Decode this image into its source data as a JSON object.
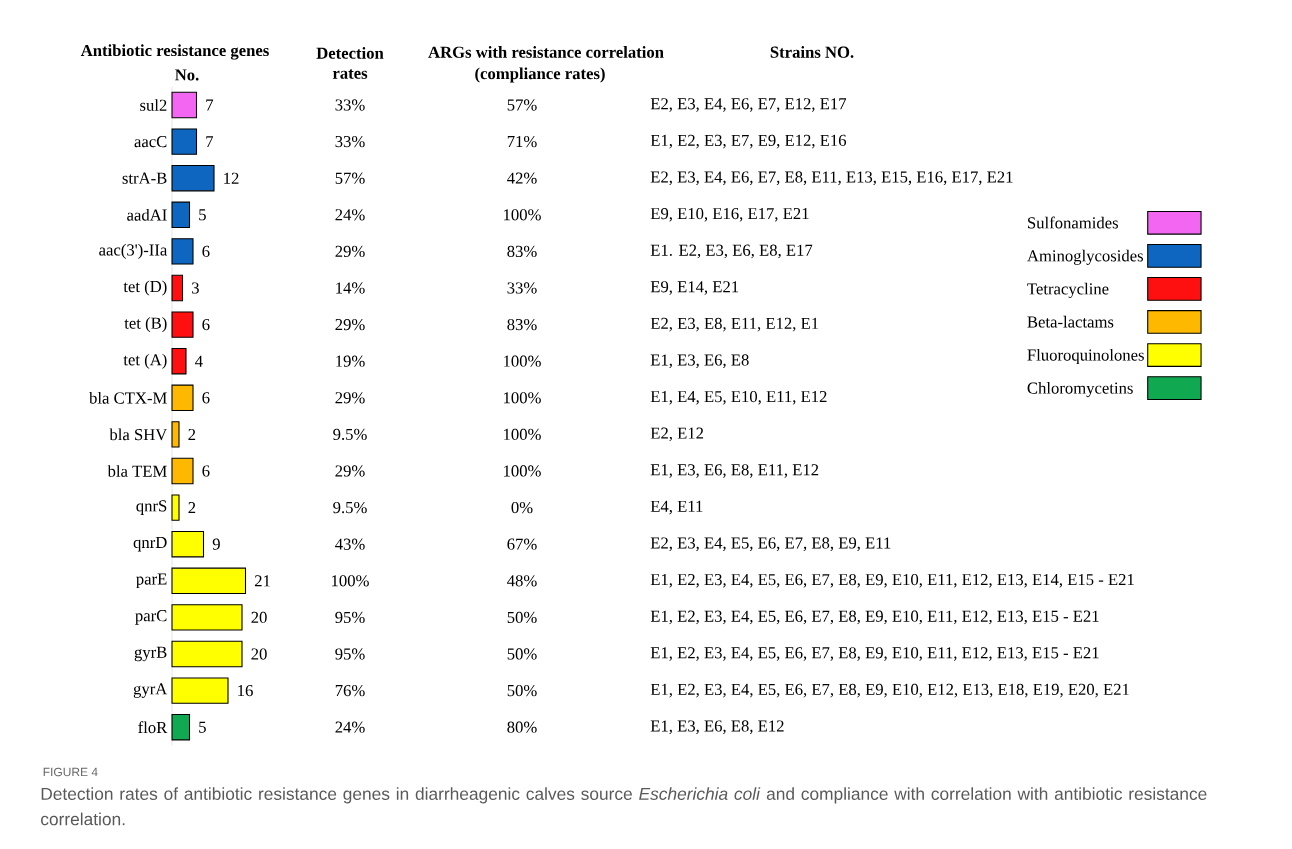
{
  "chart_data": [
    {
      "type": "bar",
      "orientation": "horizontal",
      "title": "Antibiotic resistance genes",
      "subtitle": "No.",
      "categories": [
        "sul2",
        "aacC",
        "strA-B",
        "aadAI",
        "aac(3')-IIa",
        "tet (D)",
        "tet (B)",
        "tet (A)",
        "bla CTX-M",
        "bla SHV",
        "bla TEM",
        "qnrS",
        "qnrD",
        "parE",
        "parC",
        "gyrB",
        "gyrA",
        "floR"
      ],
      "series": [
        {
          "name": "Sulfonamides",
          "color": "#f266f2",
          "values": [
            7,
            null,
            null,
            null,
            null,
            null,
            null,
            null,
            null,
            null,
            null,
            null,
            null,
            null,
            null,
            null,
            null,
            null
          ]
        },
        {
          "name": "Aminoglycosides",
          "color": "#0f66c0",
          "values": [
            null,
            7,
            12,
            5,
            6,
            null,
            null,
            null,
            null,
            null,
            null,
            null,
            null,
            null,
            null,
            null,
            null,
            null
          ]
        },
        {
          "name": "Tetracycline",
          "color": "#ff1010",
          "values": [
            null,
            null,
            null,
            null,
            null,
            3,
            6,
            4,
            null,
            null,
            null,
            null,
            null,
            null,
            null,
            null,
            null,
            null
          ]
        },
        {
          "name": "Beta-lactams",
          "color": "#ffb800",
          "values": [
            null,
            null,
            null,
            null,
            null,
            null,
            null,
            null,
            6,
            2,
            6,
            null,
            null,
            null,
            null,
            null,
            null,
            null
          ]
        },
        {
          "name": "Fluoroquinolones",
          "color": "#ffff00",
          "values": [
            null,
            null,
            null,
            null,
            null,
            null,
            null,
            null,
            null,
            null,
            null,
            2,
            9,
            21,
            20,
            20,
            16,
            null
          ]
        },
        {
          "name": "Chloromycetins",
          "color": "#10a850",
          "values": [
            null,
            null,
            null,
            null,
            null,
            null,
            null,
            null,
            null,
            null,
            null,
            null,
            null,
            null,
            null,
            null,
            null,
            5
          ]
        }
      ],
      "data_labels": true,
      "legend": "right",
      "annotations": [
        "FIGURE 4",
        "Detection rates of antibiotic resistance genes in diarrheagenic calves source *Escherichia coli* and compliance with correlation with antibiotic resistance correlation."
      ]
    },
    {
      "type": "other",
      "title": "Detection rates",
      "annotations": [
        "33%",
        "33%",
        "57%",
        "24%",
        "29%",
        "14%",
        "29%",
        "19%",
        "29%",
        "9.5%",
        "29%",
        "9.5%",
        "43%",
        "100%",
        "95%",
        "95%",
        "76%",
        "24%"
      ]
    },
    {
      "type": "other",
      "title": "ARGs with  resistance correlation",
      "subtitle": "(compliance rates)",
      "annotations": [
        "57%",
        "71%",
        "42%",
        "100%",
        "83%",
        "33%",
        "83%",
        "100%",
        "100%",
        "100%",
        "100%",
        "0%",
        "67%",
        "48%",
        "50%",
        "50%",
        "50%",
        "80%"
      ]
    },
    {
      "type": "other",
      "title": "Strains NO.",
      "annotations": [
        "E2, E3, E4, E6, E7, E12, E17",
        "E1, E2, E3, E7, E9, E12, E16",
        "E2, E3, E4, E6, E7, E8, E11, E13, E15, E16, E17, E21",
        "E9, E10, E16, E17, E21",
        "E1. E2, E3, E6, E8, E17",
        "E9, E14, E21",
        "E2, E3, E8, E11, E12, E1",
        "E1, E3, E6, E8",
        "E1, E4, E5, E10, E11, E12",
        "E2, E12",
        "E1, E3, E6, E8, E11, E12",
        "E4, E11",
        "E2, E3, E4, E5, E6, E7, E8, E9, E11",
        "E1, E2, E3, E4, E5, E6, E7, E8, E9, E10, E11, E12, E13, E14, E15 - E21",
        "E1, E2, E3, E4, E5, E6, E7, E8, E9, E10, E11, E12, E13, E15 - E21",
        "E1, E2, E3, E4, E5, E6, E7, E8, E9, E10, E11, E12, E13, E15 - E21",
        "E1, E2, E3, E4, E5, E6, E7, E8, E9, E10, E12, E13, E18, E19, E20, E21",
        "E1, E3, E6, E8, E12"
      ]
    }
  ]
}
